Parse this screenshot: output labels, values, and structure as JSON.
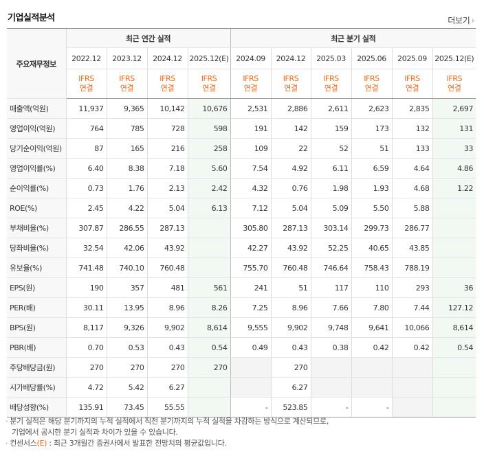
{
  "title": "기업실적분석",
  "more_label": "더보기",
  "row_header_label": "주요재무정보",
  "groups": {
    "annual": "최근 연간 실적",
    "quarterly": "최근 분기 실적"
  },
  "periods": [
    "2022.12",
    "2023.12",
    "2024.12",
    "2025.12(E)",
    "2024.09",
    "2024.12",
    "2025.03",
    "2025.06",
    "2025.09",
    "2025.12(E)"
  ],
  "ifrs_top": "IFRS",
  "ifrs_bottom": "연결",
  "rows": [
    {
      "label": "매출액(억원)",
      "values": [
        "11,937",
        "9,365",
        "10,142",
        "10,676",
        "2,531",
        "2,886",
        "2,611",
        "2,623",
        "2,835",
        "2,697"
      ]
    },
    {
      "label": "영업이익(억원)",
      "values": [
        "764",
        "785",
        "728",
        "598",
        "191",
        "142",
        "159",
        "173",
        "132",
        "131"
      ]
    },
    {
      "label": "당기순이익(억원)",
      "values": [
        "87",
        "165",
        "216",
        "258",
        "109",
        "22",
        "52",
        "51",
        "133",
        "33"
      ]
    },
    {
      "label": "영업이익률(%)",
      "values": [
        "6.40",
        "8.38",
        "7.18",
        "5.60",
        "7.54",
        "4.92",
        "6.11",
        "6.59",
        "4.64",
        "4.86"
      ]
    },
    {
      "label": "순이익률(%)",
      "values": [
        "0.73",
        "1.76",
        "2.13",
        "2.42",
        "4.32",
        "0.76",
        "1.98",
        "1.93",
        "4.68",
        "1.22"
      ]
    },
    {
      "label": "ROE(%)",
      "values": [
        "2.45",
        "4.22",
        "5.04",
        "6.13",
        "7.12",
        "5.04",
        "5.09",
        "5.50",
        "5.88",
        ""
      ]
    },
    {
      "label": "부채비율(%)",
      "values": [
        "307.87",
        "286.55",
        "287.13",
        "",
        "305.80",
        "287.13",
        "303.14",
        "299.73",
        "286.77",
        ""
      ]
    },
    {
      "label": "당좌비율(%)",
      "values": [
        "32.54",
        "42.06",
        "43.92",
        "",
        "42.27",
        "43.92",
        "52.25",
        "40.65",
        "43.85",
        ""
      ]
    },
    {
      "label": "유보율(%)",
      "values": [
        "741.48",
        "740.10",
        "760.48",
        "",
        "755.70",
        "760.48",
        "746.64",
        "758.43",
        "788.19",
        ""
      ]
    },
    {
      "label": "EPS(원)",
      "values": [
        "190",
        "357",
        "481",
        "561",
        "241",
        "51",
        "117",
        "110",
        "293",
        "36"
      ]
    },
    {
      "label": "PER(배)",
      "values": [
        "30.11",
        "13.95",
        "8.96",
        "8.26",
        "7.25",
        "8.96",
        "7.66",
        "7.80",
        "7.44",
        "127.12"
      ]
    },
    {
      "label": "BPS(원)",
      "values": [
        "8,117",
        "9,326",
        "9,902",
        "8,614",
        "9,555",
        "9,902",
        "9,748",
        "9,641",
        "10,066",
        "8,614"
      ]
    },
    {
      "label": "PBR(배)",
      "values": [
        "0.70",
        "0.53",
        "0.43",
        "0.54",
        "0.49",
        "0.43",
        "0.38",
        "0.42",
        "0.42",
        "0.54"
      ]
    },
    {
      "label": "주당배당금(원)",
      "values": [
        "270",
        "270",
        "270",
        "270",
        "",
        "270",
        "",
        "",
        "",
        ""
      ]
    },
    {
      "label": "시가배당률(%)",
      "values": [
        "4.72",
        "5.42",
        "6.27",
        "",
        "",
        "6.27",
        "",
        "",
        "",
        ""
      ]
    },
    {
      "label": "배당성향(%)",
      "values": [
        "135.91",
        "73.45",
        "55.55",
        "",
        "-",
        "523.85",
        "-",
        "-",
        "",
        ""
      ]
    }
  ],
  "notes": {
    "line1": "분기 실적은 해당 분기까지의 누적 실적에서 직전 분기까지의 누적 실적을 차감하는 방식으로 계산되므로,",
    "line2": "기업에서 공시한 분기 실적과 차이가 있을 수 있습니다.",
    "line3_prefix": "컨센서스",
    "line3_mark": "(E)",
    "line3_suffix": " : 최근 3개월간 증권사에서 발표한 전망치의 평균값입니다."
  },
  "colors": {
    "ifrs": "#f06a1e",
    "estimate_bg": "#f2f9f3",
    "header_bg": "#f8f8f8",
    "empty_bg": "#f4f4f4"
  }
}
